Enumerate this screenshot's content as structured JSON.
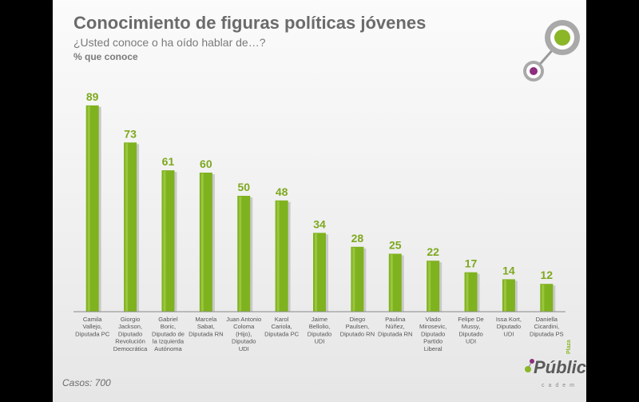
{
  "header": {
    "title": "Conocimiento de figuras políticas jóvenes",
    "subtitle": "¿Usted conoce o ha oído hablar de…?",
    "unit": "% que conoce"
  },
  "footnote": "Casos: 700",
  "brand": {
    "logo_word": "Pública",
    "logo_small": "Plaza",
    "logo_sub": "cadem",
    "accent_green": "#8ab628",
    "accent_purple": "#8e2e7e"
  },
  "chart_data": {
    "type": "bar",
    "title": "Conocimiento de figuras políticas jóvenes",
    "subtitle": "¿Usted conoce o ha oído hablar de…?",
    "ylabel": "% que conoce",
    "ylim": [
      0,
      100
    ],
    "grid": false,
    "legend": "none",
    "bar_color": "#7fb21f",
    "categories": [
      [
        "Camila",
        "Vallejo,",
        "Diputada PC"
      ],
      [
        "Giorgio",
        "Jackson,",
        "Diputado",
        "Revolución",
        "Democrática"
      ],
      [
        "Gabriel",
        "Boric,",
        "Diputado de",
        "la Izquierda",
        "Autónoma"
      ],
      [
        "Marcela",
        "Sabat,",
        "Diputada RN"
      ],
      [
        "Juan Antonio",
        "Coloma",
        "(Hijo),",
        "Diputado",
        "UDI"
      ],
      [
        "Karol",
        "Cariola,",
        "Diputada PC"
      ],
      [
        "Jaime",
        "Bellolio,",
        "Diputado",
        "UDI"
      ],
      [
        "Diego",
        "Paulsen,",
        "Diputado RN"
      ],
      [
        "Paulina",
        "Núñez,",
        "Diputada RN"
      ],
      [
        "Vlado",
        "Mirosevic,",
        "Diputado",
        "Partido",
        "Liberal"
      ],
      [
        "Felipe De",
        "Mussy,",
        "Diputado",
        "UDI"
      ],
      [
        "Issa Kort,",
        "Diputado",
        "UDI"
      ],
      [
        "Daniella",
        "Cicardini,",
        "Diputada PS"
      ]
    ],
    "values": [
      89,
      73,
      61,
      60,
      50,
      48,
      34,
      28,
      25,
      22,
      17,
      14,
      12
    ]
  }
}
